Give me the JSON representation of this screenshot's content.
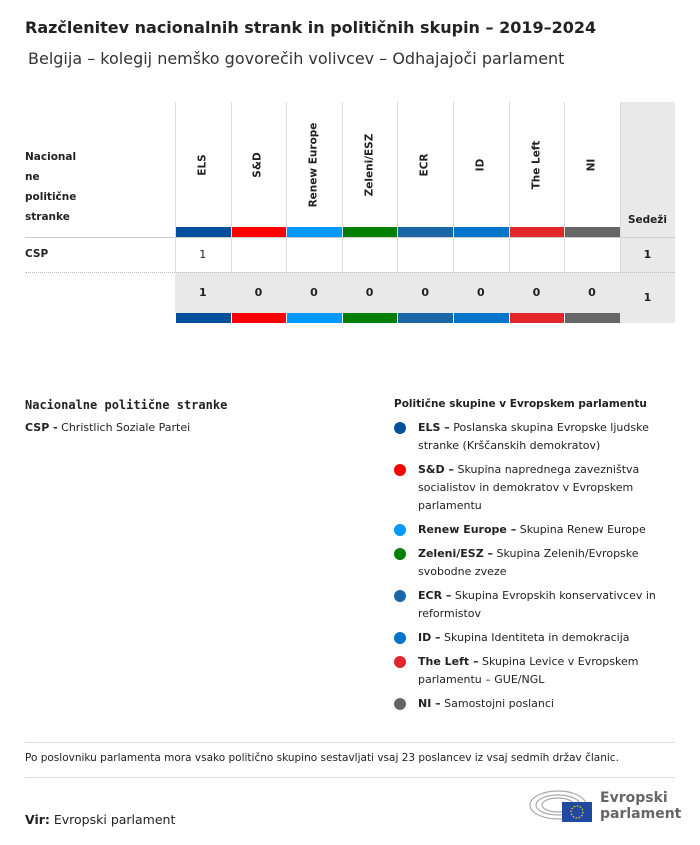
{
  "title": "Razčlenitev nacionalnih strank in političnih skupin – 2019–2024",
  "subtitle": "Belgija – kolegij nemško govorečih volivcev – Odhajajoči parlament",
  "table": {
    "row_header": [
      "Nacional",
      "ne",
      "politične",
      "stranke"
    ],
    "seats_header": "Sedeži",
    "groups": [
      {
        "name": "ELS",
        "color": "#00509e"
      },
      {
        "name": "S&D",
        "color": "#ff0000"
      },
      {
        "name": "Renew Europe",
        "color": "#0099ff"
      },
      {
        "name": "Zeleni/ESZ",
        "color": "#008000"
      },
      {
        "name": "ECR",
        "color": "#1a66a6"
      },
      {
        "name": "ID",
        "color": "#0075c9"
      },
      {
        "name": "The Left",
        "color": "#e2262a"
      },
      {
        "name": "NI",
        "color": "#666666"
      }
    ],
    "rows": [
      {
        "party": "CSP",
        "values": [
          "1",
          "",
          "",
          "",
          "",
          "",
          "",
          ""
        ],
        "seats": "1"
      }
    ],
    "totals": [
      "1",
      "0",
      "0",
      "0",
      "0",
      "0",
      "0",
      "0"
    ],
    "total_seats": "1"
  },
  "national_legend": {
    "title": "Nacionalne politične stranke",
    "items": [
      {
        "abbr": "CSP -",
        "name": " Christlich Soziale Partei"
      }
    ]
  },
  "group_legend": {
    "title": "Politične skupine v Evropskem parlamentu",
    "items": [
      {
        "abbr": "ELS –",
        "desc": " Poslanska skupina Evropske ljudske stranke (Krščanskih demokratov)"
      },
      {
        "abbr": "S&D –",
        "desc": " Skupina naprednega zavezništva socialistov in demokratov v Evropskem parlamentu"
      },
      {
        "abbr": "Renew Europe –",
        "desc": " Skupina Renew Europe"
      },
      {
        "abbr": "Zeleni/ESZ –",
        "desc": " Skupina Zelenih/Evropske svobodne zveze"
      },
      {
        "abbr": "ECR –",
        "desc": " Skupina Evropskih konservativcev in reformistov"
      },
      {
        "abbr": "ID –",
        "desc": " Skupina Identiteta in demokracija"
      },
      {
        "abbr": "The Left –",
        "desc": " Skupina Levice v Evropskem parlamentu – GUE/NGL"
      },
      {
        "abbr": "NI –",
        "desc": " Samostojni poslanci"
      }
    ]
  },
  "footnote": "Po poslovniku parlamenta mora vsako politično skupino sestavljati vsaj 23 poslancev iz vsaj sedmih držav članic.",
  "source": {
    "label": "Vir:",
    "value": " Evropski parlament"
  },
  "logo": {
    "line1": "Evropski",
    "line2": "parlament"
  }
}
